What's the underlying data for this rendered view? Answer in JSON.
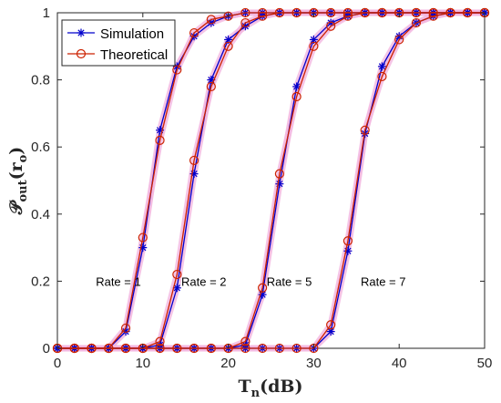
{
  "chart_data": {
    "type": "line",
    "xlabel": "T",
    "xlabel_sub": "n",
    "xlabel_unit": "(dB)",
    "ylabel": "𝒫",
    "ylabel_sub": "out",
    "ylabel_arg": "(r",
    "ylabel_arg_sub": "o",
    "ylabel_close": ")",
    "xlim": [
      0,
      50
    ],
    "ylim": [
      0,
      1
    ],
    "xticks": [
      0,
      10,
      20,
      30,
      40,
      50
    ],
    "yticks": [
      0,
      0.2,
      0.4,
      0.6,
      0.8,
      1
    ],
    "xtick_labels": [
      "0",
      "10",
      "20",
      "30",
      "40",
      "50"
    ],
    "ytick_labels": [
      "0",
      "0.2",
      "0.4",
      "0.6",
      "0.8",
      "1"
    ],
    "grid": false,
    "legend_position": "top-left",
    "x": [
      0,
      2,
      4,
      6,
      8,
      10,
      12,
      14,
      16,
      18,
      20,
      22,
      24,
      26,
      28,
      30,
      32,
      34,
      36,
      38,
      40,
      42,
      44,
      46,
      48,
      50
    ],
    "series": [
      {
        "name": "Simulation",
        "color": "#0000cc",
        "marker": "asterisk",
        "groups": [
          [
            0,
            0,
            0,
            0,
            0.05,
            0.3,
            0.65,
            0.84,
            0.93,
            0.97,
            0.99,
            1,
            1,
            1,
            1,
            1,
            1,
            1,
            1,
            1,
            1,
            1,
            1,
            1,
            1,
            1
          ],
          [
            0,
            0,
            0,
            0,
            0,
            0,
            0.01,
            0.18,
            0.52,
            0.8,
            0.92,
            0.96,
            0.99,
            1,
            1,
            1,
            1,
            1,
            1,
            1,
            1,
            1,
            1,
            1,
            1,
            1
          ],
          [
            0,
            0,
            0,
            0,
            0,
            0,
            0,
            0,
            0,
            0,
            0,
            0.01,
            0.16,
            0.49,
            0.78,
            0.92,
            0.97,
            0.99,
            1,
            1,
            1,
            1,
            1,
            1,
            1,
            1
          ],
          [
            0,
            0,
            0,
            0,
            0,
            0,
            0,
            0,
            0,
            0,
            0,
            0,
            0,
            0,
            0,
            0,
            0.05,
            0.29,
            0.64,
            0.84,
            0.93,
            0.97,
            0.99,
            1,
            1,
            1
          ]
        ]
      },
      {
        "name": "Theoretical",
        "color": "#cc2200",
        "marker": "circle",
        "groups": [
          [
            0,
            0,
            0,
            0,
            0.06,
            0.33,
            0.62,
            0.83,
            0.94,
            0.98,
            0.99,
            1,
            1,
            1,
            1,
            1,
            1,
            1,
            1,
            1,
            1,
            1,
            1,
            1,
            1,
            1
          ],
          [
            0,
            0,
            0,
            0,
            0,
            0,
            0.02,
            0.22,
            0.56,
            0.78,
            0.9,
            0.97,
            0.99,
            1,
            1,
            1,
            1,
            1,
            1,
            1,
            1,
            1,
            1,
            1,
            1,
            1
          ],
          [
            0,
            0,
            0,
            0,
            0,
            0,
            0,
            0,
            0,
            0,
            0,
            0.02,
            0.18,
            0.52,
            0.75,
            0.9,
            0.96,
            0.99,
            1,
            1,
            1,
            1,
            1,
            1,
            1,
            1
          ],
          [
            0,
            0,
            0,
            0,
            0,
            0,
            0,
            0,
            0,
            0,
            0,
            0,
            0,
            0,
            0,
            0,
            0.07,
            0.32,
            0.65,
            0.81,
            0.92,
            0.97,
            0.99,
            1,
            1,
            1
          ]
        ]
      }
    ],
    "annotations": [
      {
        "text": "Rate = 1",
        "x": 4.5,
        "y": 0.2
      },
      {
        "text": "Rate = 2",
        "x": 14.5,
        "y": 0.2
      },
      {
        "text": "Rate = 5",
        "x": 24.5,
        "y": 0.2
      },
      {
        "text": "Rate = 7",
        "x": 35.5,
        "y": 0.2
      }
    ]
  }
}
